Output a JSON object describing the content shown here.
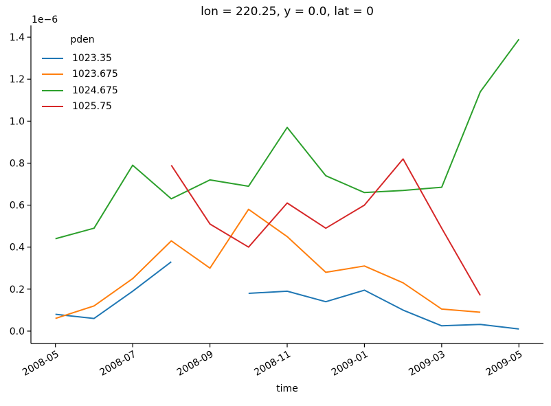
{
  "title": "lon = 220.25, y = 0.0, lat = 0",
  "axis_color": "#000000",
  "background": "#ffffff",
  "chart_data": {
    "type": "line",
    "title": "lon = 220.25, y = 0.0, lat = 0",
    "xlabel": "time",
    "ylabel": "",
    "y_offset_label": "1e−6",
    "value_scale_note": "y values are in units of 1e-6",
    "grid": false,
    "x": [
      "2008-05",
      "2008-06",
      "2008-07",
      "2008-08",
      "2008-09",
      "2008-10",
      "2008-11",
      "2008-12",
      "2009-01",
      "2009-02",
      "2009-03",
      "2009-04",
      "2009-05"
    ],
    "xticks": [
      "2008-05",
      "2008-07",
      "2008-09",
      "2008-11",
      "2009-01",
      "2009-03",
      "2009-05"
    ],
    "ytick_values": [
      0.0,
      0.2,
      0.4,
      0.6,
      0.8,
      1.0,
      1.2,
      1.4
    ],
    "ytick_labels": [
      "0.0",
      "0.2",
      "0.4",
      "0.6",
      "0.8",
      "1.0",
      "1.2",
      "1.4"
    ],
    "xlim": [
      -0.635,
      12.635
    ],
    "ylim": [
      -0.059,
      1.456
    ],
    "legend": {
      "title": "pden",
      "position": "upper-left"
    },
    "series": [
      {
        "name": "1023.35",
        "color": "#1f77b4",
        "values": [
          0.08,
          0.06,
          0.19,
          0.33,
          null,
          0.18,
          0.19,
          0.14,
          0.195,
          0.1,
          0.025,
          0.032,
          0.01
        ]
      },
      {
        "name": "1023.675",
        "color": "#ff7f0e",
        "values": [
          0.06,
          0.12,
          0.25,
          0.43,
          0.3,
          0.58,
          0.45,
          0.28,
          0.31,
          0.23,
          0.105,
          0.09,
          null
        ]
      },
      {
        "name": "1024.675",
        "color": "#2ca02c",
        "values": [
          0.44,
          0.49,
          0.79,
          0.63,
          0.72,
          0.69,
          0.97,
          0.74,
          0.66,
          0.67,
          0.685,
          1.14,
          1.39
        ]
      },
      {
        "name": "1025.75",
        "color": "#d62728",
        "values": [
          null,
          null,
          null,
          0.79,
          0.51,
          0.4,
          0.61,
          0.49,
          0.6,
          0.82,
          0.49,
          0.17,
          null
        ]
      }
    ]
  }
}
